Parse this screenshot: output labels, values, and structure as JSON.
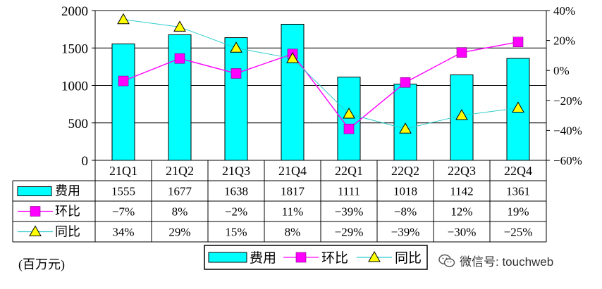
{
  "chart_data": {
    "type": "bar",
    "categories": [
      "21Q1",
      "21Q2",
      "21Q3",
      "21Q4",
      "22Q1",
      "22Q2",
      "22Q3",
      "22Q4"
    ],
    "series": [
      {
        "name": "费用",
        "type": "bar",
        "axis": "left",
        "color": "#00FFFF",
        "values": [
          1555,
          1677,
          1638,
          1817,
          1111,
          1018,
          1142,
          1361
        ]
      },
      {
        "name": "环比",
        "type": "line",
        "axis": "right",
        "color": "#FF00FF",
        "marker": "square",
        "values": [
          -7,
          8,
          -2,
          11,
          -39,
          -8,
          12,
          19
        ]
      },
      {
        "name": "同比",
        "type": "line",
        "axis": "right",
        "color": "#33CCCC",
        "marker": "triangle",
        "values": [
          34,
          29,
          15,
          8,
          -29,
          -39,
          -30,
          -25
        ]
      }
    ],
    "ylim_left": [
      0,
      2000
    ],
    "yticks_left": [
      "0",
      "500",
      "1000",
      "1500",
      "2000"
    ],
    "ylim_right": [
      -60,
      40
    ],
    "yticks_right": [
      "-60%",
      "-40%",
      "-20%",
      "0%",
      "20%",
      "40%"
    ],
    "table_values": {
      "费用": [
        "1555",
        "1677",
        "1638",
        "1817",
        "1111",
        "1018",
        "1142",
        "1361"
      ],
      "环比": [
        "-7%",
        "8%",
        "-2%",
        "11%",
        "-39%",
        "-8%",
        "12%",
        "19%"
      ],
      "同比": [
        "34%",
        "29%",
        "15%",
        "8%",
        "-29%",
        "-39%",
        "-30%",
        "-25%"
      ]
    },
    "legend_position": "bottom",
    "grid": true
  },
  "unit_label": "(百万元)",
  "watermark": "微信号: touchweb"
}
